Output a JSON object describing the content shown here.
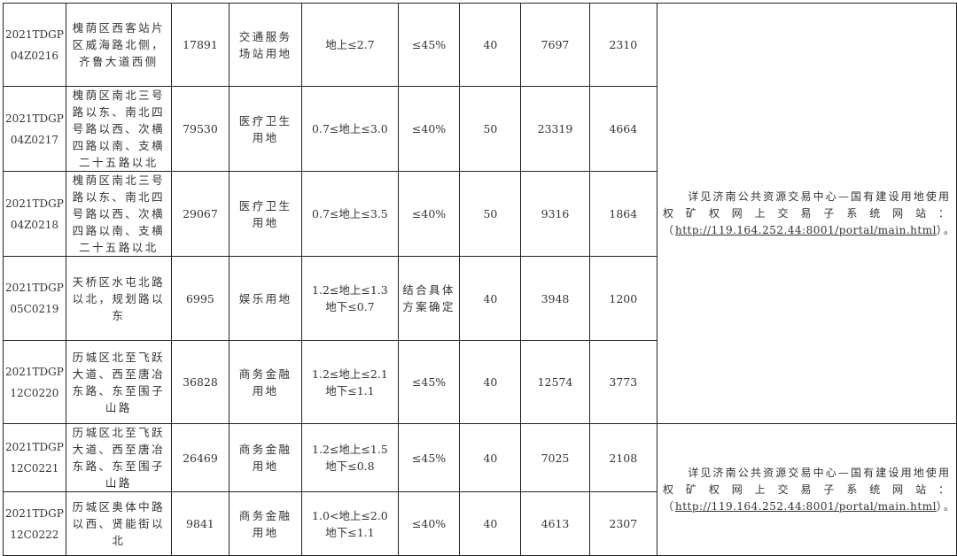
{
  "rows": [
    {
      "id_line1": "2021TDGP",
      "id_line2": "04Z0216",
      "location": "槐荫区西客站片区威海路北侧，齐鲁大道西侧",
      "area": "17891",
      "use": "交通服务场站用地",
      "far_line1": "地上≤2.7",
      "far_line2": "",
      "green": "≤45%",
      "years": "40",
      "deposit": "7697",
      "price": "2310"
    },
    {
      "id_line1": "2021TDGP",
      "id_line2": "04Z0217",
      "location": "槐荫区南北三号路以东、南北四号路以西、次横四路以南、支横二十五路以北",
      "area": "79530",
      "use": "医疗卫生用地",
      "far_line1": "0.7≤地上≤3.0",
      "far_line2": "",
      "green": "≤40%",
      "years": "50",
      "deposit": "23319",
      "price": "4664"
    },
    {
      "id_line1": "2021TDGP",
      "id_line2": "04Z0218",
      "location": "槐荫区南北三号路以东、南北四号路以西、次横四路以南、支横二十五路以北",
      "area": "29067",
      "use": "医疗卫生用地",
      "far_line1": "0.7≤地上≤3.5",
      "far_line2": "",
      "green": "≤40%",
      "years": "50",
      "deposit": "9316",
      "price": "1864"
    },
    {
      "id_line1": "2021TDGP",
      "id_line2": "05C0219",
      "location": "天桥区水屯北路以北，规划路以东",
      "area": "6995",
      "use": "娱乐用地",
      "far_line1": "1.2≤地上≤1.3",
      "far_line2": "地下≤0.7",
      "green": "结合具体方案确定",
      "years": "40",
      "deposit": "3948",
      "price": "1200"
    },
    {
      "id_line1": "2021TDGP",
      "id_line2": "12C0220",
      "location": "历城区北至飞跃大道、西至唐冶东路、东至围子山路",
      "area": "36828",
      "use": "商务金融用地",
      "far_line1": "1.2≤地上≤2.1",
      "far_line2": "地下≤1.1",
      "green": "≤45%",
      "years": "40",
      "deposit": "12574",
      "price": "3773"
    },
    {
      "id_line1": "2021TDGP",
      "id_line2": "12C0221",
      "location": "历城区北至飞跃大道、西至唐冶东路、东至围子山路",
      "area": "26469",
      "use": "商务金融用地",
      "far_line1": "1.2≤地上≤1.5",
      "far_line2": "地下≤0.8",
      "green": "≤45%",
      "years": "40",
      "deposit": "7025",
      "price": "2108"
    },
    {
      "id_line1": "2021TDGP",
      "id_line2": "12C0222",
      "location": "历城区奥体中路以西、贤能街以北",
      "area": "9841",
      "use": "商务金融用地",
      "far_line1": "1.0<地上≤2.0",
      "far_line2": "地下≤1.1",
      "green": "≤40%",
      "years": "40",
      "deposit": "4613",
      "price": "2307"
    }
  ],
  "notes": [
    {
      "text": "　　详见济南公共资源交易中心—国有建设用地使用权矿权网上交易子系统网站：（",
      "url": "http://119.164.252.44:8001/portal/main.html",
      "tail": "）。"
    },
    {
      "text": "　　详见济南公共资源交易中心—国有建设用地使用权矿权网上交易子系统网站：（",
      "url": "http://119.164.252.44:8001/portal/main.html",
      "tail": "）。"
    }
  ]
}
